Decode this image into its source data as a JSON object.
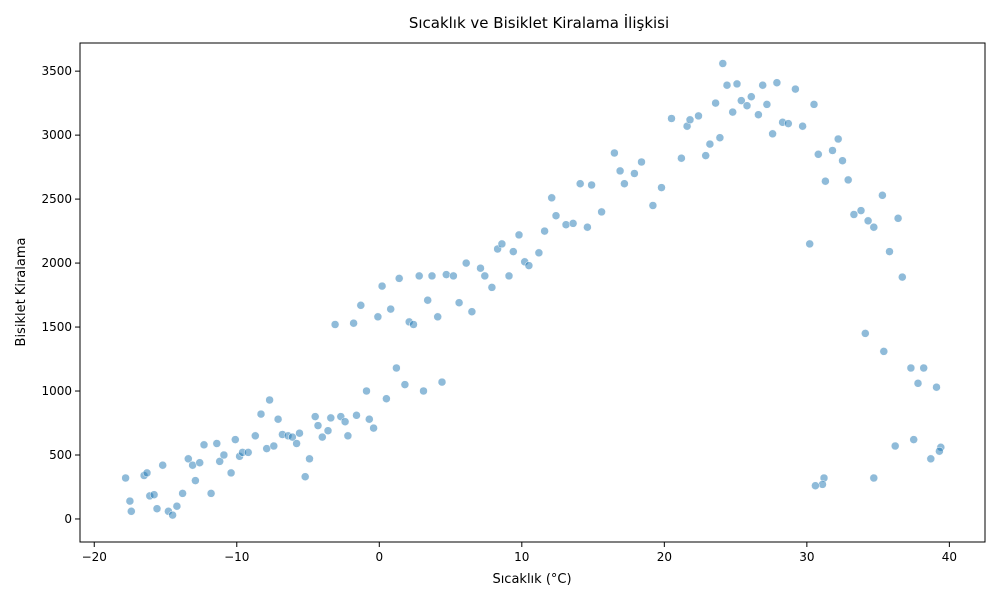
{
  "chart_data": {
    "type": "scatter",
    "title": "Sıcaklık ve Bisiklet Kiralama İlişkisi",
    "xlabel": "Sıcaklık (°C)",
    "ylabel": "Bisiklet Kiralama",
    "xlim": [
      -21,
      42.5
    ],
    "ylim": [
      -180,
      3720
    ],
    "xticks": [
      -20,
      -10,
      0,
      10,
      20,
      30,
      40
    ],
    "xtick_labels": [
      "−20",
      "−10",
      "0",
      "10",
      "20",
      "30",
      "40"
    ],
    "yticks": [
      0,
      500,
      1000,
      1500,
      2000,
      2500,
      3000,
      3500
    ],
    "ytick_labels": [
      "0",
      "500",
      "1000",
      "1500",
      "2000",
      "2500",
      "3000",
      "3500"
    ],
    "grid": false,
    "legend": "none",
    "marker_color": "#1f77b4",
    "marker_opacity": 0.5,
    "marker_edge_color": "#ffffff",
    "series": [
      {
        "points": [
          [
            -17.8,
            320
          ],
          [
            -17.5,
            140
          ],
          [
            -17.4,
            60
          ],
          [
            -16.5,
            340
          ],
          [
            -16.3,
            360
          ],
          [
            -16.1,
            180
          ],
          [
            -15.8,
            190
          ],
          [
            -15.6,
            80
          ],
          [
            -15.2,
            420
          ],
          [
            -14.8,
            60
          ],
          [
            -14.5,
            30
          ],
          [
            -14.2,
            100
          ],
          [
            -13.8,
            200
          ],
          [
            -13.4,
            470
          ],
          [
            -13.1,
            420
          ],
          [
            -12.9,
            300
          ],
          [
            -12.6,
            440
          ],
          [
            -12.3,
            580
          ],
          [
            -11.8,
            200
          ],
          [
            -11.4,
            590
          ],
          [
            -11.2,
            450
          ],
          [
            -10.9,
            500
          ],
          [
            -10.4,
            360
          ],
          [
            -10.1,
            620
          ],
          [
            -9.8,
            490
          ],
          [
            -9.6,
            520
          ],
          [
            -9.2,
            520
          ],
          [
            -8.7,
            650
          ],
          [
            -8.3,
            820
          ],
          [
            -7.9,
            550
          ],
          [
            -7.7,
            930
          ],
          [
            -7.4,
            570
          ],
          [
            -7.1,
            780
          ],
          [
            -6.8,
            660
          ],
          [
            -6.4,
            650
          ],
          [
            -6.1,
            640
          ],
          [
            -5.8,
            590
          ],
          [
            -5.6,
            670
          ],
          [
            -5.2,
            330
          ],
          [
            -4.9,
            470
          ],
          [
            -4.5,
            800
          ],
          [
            -4.3,
            730
          ],
          [
            -4,
            640
          ],
          [
            -3.6,
            690
          ],
          [
            -3.4,
            790
          ],
          [
            -3.1,
            1520
          ],
          [
            -2.7,
            800
          ],
          [
            -2.4,
            760
          ],
          [
            -2.2,
            650
          ],
          [
            -1.8,
            1530
          ],
          [
            -1.6,
            810
          ],
          [
            -1.3,
            1670
          ],
          [
            -0.9,
            1000
          ],
          [
            -0.7,
            780
          ],
          [
            -0.4,
            710
          ],
          [
            -0.1,
            1580
          ],
          [
            0.2,
            1820
          ],
          [
            0.5,
            940
          ],
          [
            0.8,
            1640
          ],
          [
            1.2,
            1180
          ],
          [
            1.4,
            1880
          ],
          [
            1.8,
            1050
          ],
          [
            2.1,
            1540
          ],
          [
            2.4,
            1520
          ],
          [
            2.8,
            1900
          ],
          [
            3.1,
            1000
          ],
          [
            3.4,
            1710
          ],
          [
            3.7,
            1900
          ],
          [
            4.1,
            1580
          ],
          [
            4.4,
            1070
          ],
          [
            4.7,
            1910
          ],
          [
            5.2,
            1900
          ],
          [
            5.6,
            1690
          ],
          [
            6.1,
            2000
          ],
          [
            6.5,
            1620
          ],
          [
            7.1,
            1960
          ],
          [
            7.4,
            1900
          ],
          [
            7.9,
            1810
          ],
          [
            8.3,
            2110
          ],
          [
            8.6,
            2150
          ],
          [
            9.1,
            1900
          ],
          [
            9.4,
            2090
          ],
          [
            9.8,
            2220
          ],
          [
            10.2,
            2010
          ],
          [
            10.5,
            1980
          ],
          [
            11.2,
            2080
          ],
          [
            11.6,
            2250
          ],
          [
            12.1,
            2510
          ],
          [
            12.4,
            2370
          ],
          [
            13.1,
            2300
          ],
          [
            13.6,
            2310
          ],
          [
            14.1,
            2620
          ],
          [
            14.6,
            2280
          ],
          [
            14.9,
            2610
          ],
          [
            15.6,
            2400
          ],
          [
            16.5,
            2860
          ],
          [
            16.9,
            2720
          ],
          [
            17.2,
            2620
          ],
          [
            17.9,
            2700
          ],
          [
            18.4,
            2790
          ],
          [
            19.2,
            2450
          ],
          [
            19.8,
            2590
          ],
          [
            20.5,
            3130
          ],
          [
            21.2,
            2820
          ],
          [
            21.6,
            3070
          ],
          [
            21.8,
            3120
          ],
          [
            22.4,
            3150
          ],
          [
            22.9,
            2840
          ],
          [
            23.2,
            2930
          ],
          [
            23.6,
            3250
          ],
          [
            23.9,
            2980
          ],
          [
            24.1,
            3560
          ],
          [
            24.4,
            3390
          ],
          [
            24.8,
            3180
          ],
          [
            25.1,
            3400
          ],
          [
            25.4,
            3270
          ],
          [
            25.8,
            3230
          ],
          [
            26.1,
            3300
          ],
          [
            26.6,
            3160
          ],
          [
            26.9,
            3390
          ],
          [
            27.2,
            3240
          ],
          [
            27.6,
            3010
          ],
          [
            27.9,
            3410
          ],
          [
            28.3,
            3100
          ],
          [
            28.7,
            3090
          ],
          [
            29.2,
            3360
          ],
          [
            29.7,
            3070
          ],
          [
            30.2,
            2150
          ],
          [
            30.5,
            3240
          ],
          [
            30.8,
            2850
          ],
          [
            31.3,
            2640
          ],
          [
            31.8,
            2880
          ],
          [
            32.2,
            2970
          ],
          [
            32.5,
            2800
          ],
          [
            32.9,
            2650
          ],
          [
            33.3,
            2380
          ],
          [
            33.8,
            2410
          ],
          [
            34.3,
            2330
          ],
          [
            34.7,
            2280
          ],
          [
            35.3,
            2530
          ],
          [
            35.8,
            2090
          ],
          [
            36.4,
            2350
          ],
          [
            36.7,
            1890
          ],
          [
            37.3,
            1180
          ],
          [
            37.8,
            1060
          ],
          [
            38.2,
            1180
          ],
          [
            38.7,
            470
          ],
          [
            39.1,
            1030
          ],
          [
            39.4,
            560
          ],
          [
            39.3,
            530
          ],
          [
            34.7,
            320
          ],
          [
            31.2,
            320
          ],
          [
            31.1,
            270
          ],
          [
            30.6,
            260
          ],
          [
            37.5,
            620
          ],
          [
            36.2,
            570
          ],
          [
            35.4,
            1310
          ],
          [
            34.1,
            1450
          ]
        ]
      }
    ]
  }
}
